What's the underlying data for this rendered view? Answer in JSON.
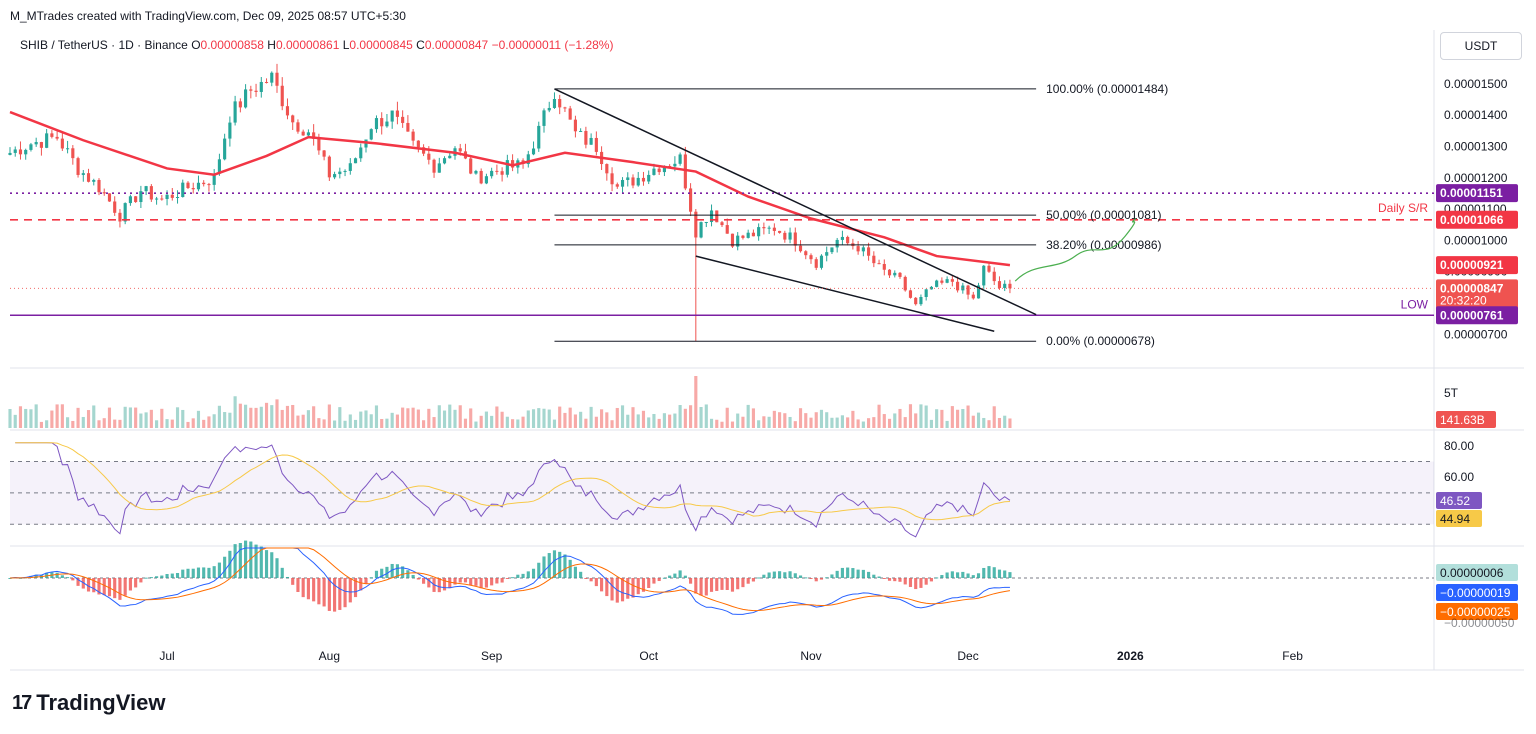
{
  "header": {
    "credit": "M_MTrades created with TradingView.com, Dec 09, 2025 08:57 UTC+5:30"
  },
  "legend": {
    "symbol": "SHIB / TetherUS · 1D · Binance",
    "o_label": "O",
    "o": "0.00000858",
    "h_label": "H",
    "h": "0.00000861",
    "l_label": "L",
    "l": "0.00000845",
    "c_label": "C",
    "c": "0.00000847",
    "change": "−0.00000011 (−1.28%)"
  },
  "currency_button": "USDT",
  "brand": {
    "logo": "17",
    "name": "TradingView"
  },
  "colors": {
    "up": "#26a69a",
    "down": "#ef5350",
    "ema": "#f23645",
    "support": "#7b1fa2",
    "rsi": "#7e57c2",
    "rsi_ma": "#f7c948",
    "macd": "#2962ff",
    "signal": "#ff6d00",
    "projection": "#4caf50"
  },
  "chart_data": [
    {
      "type": "candlestick",
      "title": "SHIB / TetherUS · 1D · Binance",
      "ylim": [
        6.5e-06,
        1.57e-05
      ],
      "y_ticks": [
        {
          "value": 1.5e-05,
          "label": "0.00001500"
        },
        {
          "value": 1.4e-05,
          "label": "0.00001400"
        },
        {
          "value": 1.3e-05,
          "label": "0.00001300"
        },
        {
          "value": 1.2e-05,
          "label": "0.00001200"
        },
        {
          "value": 1.1e-05,
          "label": "0.00001100"
        },
        {
          "value": 1e-05,
          "label": "0.00001000"
        },
        {
          "value": 9e-06,
          "label": "0.00000900"
        },
        {
          "value": 8e-06,
          "label": "0.00000800"
        },
        {
          "value": 7e-06,
          "label": "0.00000700"
        }
      ],
      "x_labels": [
        {
          "date": "2025-07-01",
          "label": "Jul"
        },
        {
          "date": "2025-08-01",
          "label": "Aug"
        },
        {
          "date": "2025-09-01",
          "label": "Sep"
        },
        {
          "date": "2025-10-01",
          "label": "Oct"
        },
        {
          "date": "2025-11-01",
          "label": "Nov"
        },
        {
          "date": "2025-12-01",
          "label": "Dec"
        },
        {
          "date": "2026-01-01",
          "label": "2026"
        },
        {
          "date": "2026-02-01",
          "label": "Feb"
        }
      ],
      "x_range": [
        "2025-06-01",
        "2026-02-28"
      ],
      "key_points": [
        {
          "date": "2025-06-01",
          "value": 1.28e-05
        },
        {
          "date": "2025-06-05",
          "value": 1.31e-05
        },
        {
          "date": "2025-06-10",
          "value": 1.33e-05
        },
        {
          "date": "2025-06-14",
          "value": 1.23e-05
        },
        {
          "date": "2025-06-18",
          "value": 1.17e-05
        },
        {
          "date": "2025-06-22",
          "value": 1.08e-05
        },
        {
          "date": "2025-06-26",
          "value": 1.16e-05
        },
        {
          "date": "2025-06-30",
          "value": 1.13e-05
        },
        {
          "date": "2025-07-05",
          "value": 1.17e-05
        },
        {
          "date": "2025-07-10",
          "value": 1.2e-05
        },
        {
          "date": "2025-07-13",
          "value": 1.4e-05
        },
        {
          "date": "2025-07-17",
          "value": 1.48e-05
        },
        {
          "date": "2025-07-21",
          "value": 1.52e-05
        },
        {
          "date": "2025-07-25",
          "value": 1.38e-05
        },
        {
          "date": "2025-07-28",
          "value": 1.35e-05
        },
        {
          "date": "2025-08-01",
          "value": 1.21e-05
        },
        {
          "date": "2025-08-05",
          "value": 1.23e-05
        },
        {
          "date": "2025-08-09",
          "value": 1.37e-05
        },
        {
          "date": "2025-08-13",
          "value": 1.4e-05
        },
        {
          "date": "2025-08-17",
          "value": 1.3e-05
        },
        {
          "date": "2025-08-21",
          "value": 1.24e-05
        },
        {
          "date": "2025-08-25",
          "value": 1.3e-05
        },
        {
          "date": "2025-08-29",
          "value": 1.2e-05
        },
        {
          "date": "2025-09-03",
          "value": 1.23e-05
        },
        {
          "date": "2025-09-07",
          "value": 1.24e-05
        },
        {
          "date": "2025-09-10",
          "value": 1.35e-05
        },
        {
          "date": "2025-09-13",
          "value": 1.48e-05
        },
        {
          "date": "2025-09-17",
          "value": 1.34e-05
        },
        {
          "date": "2025-09-21",
          "value": 1.3e-05
        },
        {
          "date": "2025-09-25",
          "value": 1.17e-05
        },
        {
          "date": "2025-09-29",
          "value": 1.2e-05
        },
        {
          "date": "2025-10-03",
          "value": 1.24e-05
        },
        {
          "date": "2025-10-07",
          "value": 1.26e-05
        },
        {
          "date": "2025-10-10",
          "value": 1.03e-05
        },
        {
          "date": "2025-10-13",
          "value": 1.1e-05
        },
        {
          "date": "2025-10-17",
          "value": 1e-05
        },
        {
          "date": "2025-10-21",
          "value": 1.02e-05
        },
        {
          "date": "2025-10-25",
          "value": 1.04e-05
        },
        {
          "date": "2025-10-29",
          "value": 1e-05
        },
        {
          "date": "2025-11-02",
          "value": 9.3e-06
        },
        {
          "date": "2025-11-06",
          "value": 1e-05
        },
        {
          "date": "2025-11-10",
          "value": 9.8e-06
        },
        {
          "date": "2025-11-14",
          "value": 9.1e-06
        },
        {
          "date": "2025-11-18",
          "value": 8.7e-06
        },
        {
          "date": "2025-11-21",
          "value": 7.9e-06
        },
        {
          "date": "2025-11-24",
          "value": 8.5e-06
        },
        {
          "date": "2025-11-28",
          "value": 8.7e-06
        },
        {
          "date": "2025-12-02",
          "value": 8.1e-06
        },
        {
          "date": "2025-12-04",
          "value": 9.1e-06
        },
        {
          "date": "2025-12-07",
          "value": 8.5e-06
        },
        {
          "date": "2025-12-09",
          "value": 8.47e-06
        }
      ],
      "ema_points": [
        {
          "date": "2025-06-01",
          "value": 1.41e-05
        },
        {
          "date": "2025-06-15",
          "value": 1.32e-05
        },
        {
          "date": "2025-07-01",
          "value": 1.23e-05
        },
        {
          "date": "2025-07-10",
          "value": 1.21e-05
        },
        {
          "date": "2025-07-20",
          "value": 1.27e-05
        },
        {
          "date": "2025-07-28",
          "value": 1.33e-05
        },
        {
          "date": "2025-08-10",
          "value": 1.31e-05
        },
        {
          "date": "2025-08-25",
          "value": 1.28e-05
        },
        {
          "date": "2025-09-05",
          "value": 1.24e-05
        },
        {
          "date": "2025-09-15",
          "value": 1.28e-05
        },
        {
          "date": "2025-09-28",
          "value": 1.25e-05
        },
        {
          "date": "2025-10-10",
          "value": 1.22e-05
        },
        {
          "date": "2025-10-20",
          "value": 1.14e-05
        },
        {
          "date": "2025-11-01",
          "value": 1.07e-05
        },
        {
          "date": "2025-11-15",
          "value": 1.01e-05
        },
        {
          "date": "2025-11-25",
          "value": 9.5e-06
        },
        {
          "date": "2025-12-09",
          "value": 9.21e-06
        }
      ],
      "fib_levels": [
        {
          "label": "100.00% (0.00001484)",
          "value": 1.484e-05
        },
        {
          "label": "50.00% (0.00001081)",
          "value": 1.081e-05
        },
        {
          "label": "38.20% (0.00000986)",
          "value": 9.86e-06
        },
        {
          "label": "0.00% (0.00000678)",
          "value": 6.78e-06
        }
      ],
      "horizontal_lines": [
        {
          "value": 1.151e-05,
          "style": "dotted",
          "color": "#7b1fa2",
          "tag": "0.00001151"
        },
        {
          "value": 1.066e-05,
          "style": "dashed",
          "color": "#f23645",
          "tag": "0.00001066",
          "label": "Daily S/R"
        },
        {
          "value": 7.61e-06,
          "style": "solid",
          "color": "#7b1fa2",
          "tag": "0.00000761",
          "label": "LOW"
        }
      ],
      "wedge": {
        "upper": [
          {
            "date": "2025-09-13",
            "value": 1.484e-05
          },
          {
            "date": "2025-12-14",
            "value": 7.63e-06
          }
        ],
        "lower": [
          {
            "date": "2025-10-10",
            "value": 9.5e-06
          },
          {
            "date": "2025-12-06",
            "value": 7.1e-06
          }
        ]
      },
      "price_tags": {
        "ema": "0.00000921",
        "last": "0.00000847",
        "countdown": "20:32:20"
      },
      "annotations": {
        "support_label": "Daily S/R",
        "low_label": "LOW"
      }
    },
    {
      "type": "bar",
      "title": "Volume",
      "y_tick": "5T",
      "last_value": "141.63B"
    },
    {
      "type": "line",
      "title": "RSI",
      "ylim": [
        20,
        85
      ],
      "y_ticks": [
        {
          "value": 80,
          "label": "80.00"
        },
        {
          "value": 60,
          "label": "60.00"
        }
      ],
      "band": [
        30,
        70
      ],
      "mid": 50,
      "series": [
        {
          "values_label": "46.52",
          "last": 46.52
        },
        {
          "values_label": "44.94",
          "last": 44.94
        }
      ]
    },
    {
      "type": "bar",
      "title": "MACD",
      "tags": [
        "0.00000006",
        "−0.00000019",
        "−0.00000025"
      ],
      "cut_label": "−0.00000050"
    }
  ]
}
